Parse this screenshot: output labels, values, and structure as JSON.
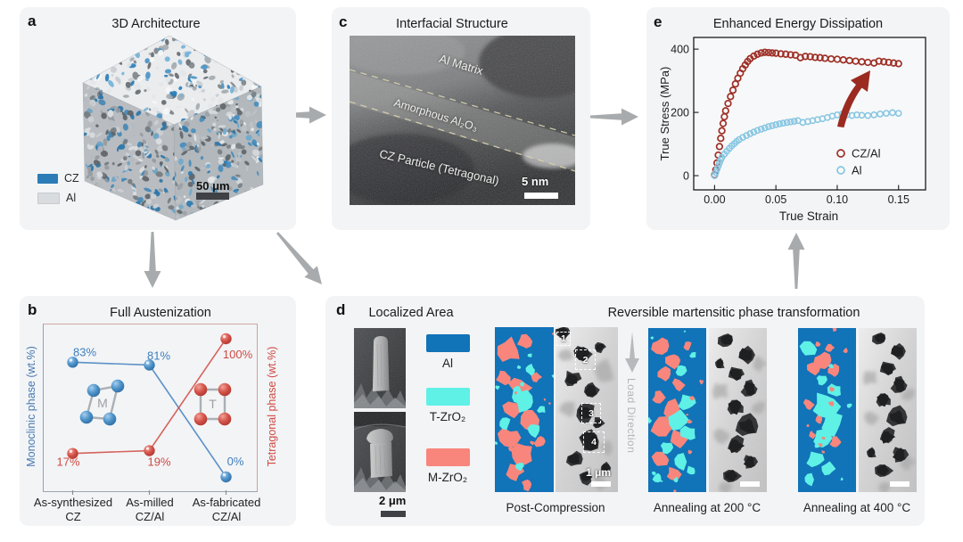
{
  "figure": {
    "background": "#ffffff"
  },
  "panels": {
    "a": {
      "letter": "a",
      "title": "3D Architecture",
      "legend": [
        {
          "label": "CZ",
          "color": "#2b7cb7"
        },
        {
          "label": "Al",
          "color": "#d9dcdf"
        }
      ],
      "scale_bar": "50 μm"
    },
    "b": {
      "letter": "b",
      "title": "Full Austenization"
    },
    "c": {
      "letter": "c",
      "title": "Interfacial Structure",
      "labels": [
        "Al Matrix",
        "Amorphous Al₂O₃",
        "CZ Particle (Tetragonal)"
      ],
      "scale_bar": "5 nm"
    },
    "d": {
      "letter": "d",
      "title_left": "Localized Area",
      "title_right": "Reversible martensitic phase transformation",
      "legend": [
        {
          "label": "Al",
          "color": "#1173b8"
        },
        {
          "label": "T-ZrO₂",
          "color": "#5ff1e6"
        },
        {
          "label": "M-ZrO₂",
          "color": "#f8867c"
        }
      ],
      "sem_scale_bar": "2 μm",
      "tem_scale_bar": "1 μm",
      "load_direction": "Load Direction",
      "region_numbers": [
        "1",
        "2",
        "3",
        "4"
      ],
      "captions": [
        "Post-Compression",
        "Annealing at 200 °C",
        "Annealing at 400 °C"
      ]
    },
    "e": {
      "letter": "e",
      "title": "Enhanced Energy Dissipation"
    }
  },
  "chart_data": [
    {
      "panel": "b",
      "type": "line",
      "title": "Full Austenization",
      "categories": [
        "As-synthesized CZ",
        "As-milled CZ/Al",
        "As-fabricated CZ/Al"
      ],
      "category_lines": [
        [
          "As-synthesized",
          "CZ"
        ],
        [
          "As-milled",
          "CZ/Al"
        ],
        [
          "As-fabricated",
          "CZ/Al"
        ]
      ],
      "ylabel_left": "Monoclinic phase (wt.%)",
      "ylabel_right": "Tetragonal phase (wt.%)",
      "ylim": [
        0,
        100
      ],
      "grid": false,
      "series": [
        {
          "name": "Monoclinic phase",
          "axis": "left",
          "color": "#3f7fbe",
          "values": [
            83,
            81,
            0
          ],
          "point_labels": [
            "83%",
            "81%",
            "0%"
          ]
        },
        {
          "name": "Tetragonal phase",
          "axis": "right",
          "color": "#cf4a42",
          "values": [
            17,
            19,
            100
          ],
          "point_labels": [
            "17%",
            "19%",
            "100%"
          ]
        }
      ],
      "insets": [
        {
          "label": "M",
          "color": "#3f7fbe"
        },
        {
          "label": "T",
          "color": "#cf4a42"
        }
      ]
    },
    {
      "panel": "e",
      "type": "scatter",
      "title": "Enhanced Energy Dissipation",
      "xlabel": "True Strain",
      "ylabel": "True Stress (MPa)",
      "xlim": [
        -0.017,
        0.172
      ],
      "ylim": [
        -45,
        437
      ],
      "xticks": [
        0,
        0.05,
        0.1,
        0.15
      ],
      "xtick_labels": [
        "0.00",
        "0.05",
        "0.10",
        "0.15"
      ],
      "yticks": [
        0,
        200,
        400
      ],
      "ytick_labels": [
        "0",
        "200",
        "400"
      ],
      "legend_position": "lower right",
      "marker": "open-circle",
      "series": [
        {
          "name": "CZ/Al",
          "color": "#9e2f26",
          "points": [
            [
              0.0,
              2
            ],
            [
              0.001,
              18
            ],
            [
              0.002,
              40
            ],
            [
              0.003,
              65
            ],
            [
              0.004,
              92
            ],
            [
              0.005,
              118
            ],
            [
              0.006,
              142
            ],
            [
              0.007,
              165
            ],
            [
              0.008,
              186
            ],
            [
              0.009,
              205
            ],
            [
              0.011,
              228
            ],
            [
              0.013,
              250
            ],
            [
              0.015,
              270
            ],
            [
              0.017,
              290
            ],
            [
              0.019,
              308
            ],
            [
              0.021,
              324
            ],
            [
              0.023,
              338
            ],
            [
              0.025,
              350
            ],
            [
              0.027,
              361
            ],
            [
              0.029,
              370
            ],
            [
              0.032,
              378
            ],
            [
              0.035,
              384
            ],
            [
              0.038,
              388
            ],
            [
              0.041,
              390
            ],
            [
              0.044,
              389
            ],
            [
              0.047,
              388
            ],
            [
              0.05,
              387
            ],
            [
              0.054,
              385
            ],
            [
              0.058,
              384
            ],
            [
              0.062,
              382
            ],
            [
              0.066,
              381
            ],
            [
              0.07,
              373
            ],
            [
              0.074,
              377
            ],
            [
              0.078,
              376
            ],
            [
              0.082,
              374
            ],
            [
              0.086,
              373
            ],
            [
              0.09,
              371
            ],
            [
              0.095,
              369
            ],
            [
              0.1,
              368
            ],
            [
              0.105,
              366
            ],
            [
              0.11,
              364
            ],
            [
              0.115,
              362
            ],
            [
              0.12,
              360
            ],
            [
              0.125,
              358
            ],
            [
              0.13,
              356
            ],
            [
              0.134,
              362
            ],
            [
              0.138,
              360
            ],
            [
              0.142,
              358
            ],
            [
              0.146,
              356
            ],
            [
              0.15,
              354
            ]
          ]
        },
        {
          "name": "Al",
          "color": "#86c6e2",
          "points": [
            [
              0.0,
              0
            ],
            [
              0.001,
              10
            ],
            [
              0.002,
              20
            ],
            [
              0.003,
              30
            ],
            [
              0.004,
              40
            ],
            [
              0.005,
              50
            ],
            [
              0.006,
              58
            ],
            [
              0.008,
              68
            ],
            [
              0.01,
              77
            ],
            [
              0.012,
              86
            ],
            [
              0.014,
              94
            ],
            [
              0.016,
              101
            ],
            [
              0.018,
              108
            ],
            [
              0.02,
              114
            ],
            [
              0.023,
              121
            ],
            [
              0.026,
              127
            ],
            [
              0.029,
              133
            ],
            [
              0.032,
              138
            ],
            [
              0.035,
              143
            ],
            [
              0.038,
              147
            ],
            [
              0.041,
              151
            ],
            [
              0.044,
              155
            ],
            [
              0.047,
              158
            ],
            [
              0.05,
              161
            ],
            [
              0.053,
              164
            ],
            [
              0.056,
              166
            ],
            [
              0.059,
              168
            ],
            [
              0.062,
              170
            ],
            [
              0.065,
              172
            ],
            [
              0.068,
              174
            ],
            [
              0.072,
              168
            ],
            [
              0.076,
              171
            ],
            [
              0.08,
              174
            ],
            [
              0.084,
              177
            ],
            [
              0.088,
              180
            ],
            [
              0.092,
              184
            ],
            [
              0.096,
              188
            ],
            [
              0.1,
              192
            ],
            [
              0.104,
              195
            ],
            [
              0.108,
              193
            ],
            [
              0.112,
              190
            ],
            [
              0.116,
              192
            ],
            [
              0.12,
              191
            ],
            [
              0.125,
              190
            ],
            [
              0.13,
              192
            ],
            [
              0.135,
              195
            ],
            [
              0.14,
              197
            ],
            [
              0.145,
              199
            ],
            [
              0.15,
              197
            ]
          ]
        }
      ]
    }
  ]
}
